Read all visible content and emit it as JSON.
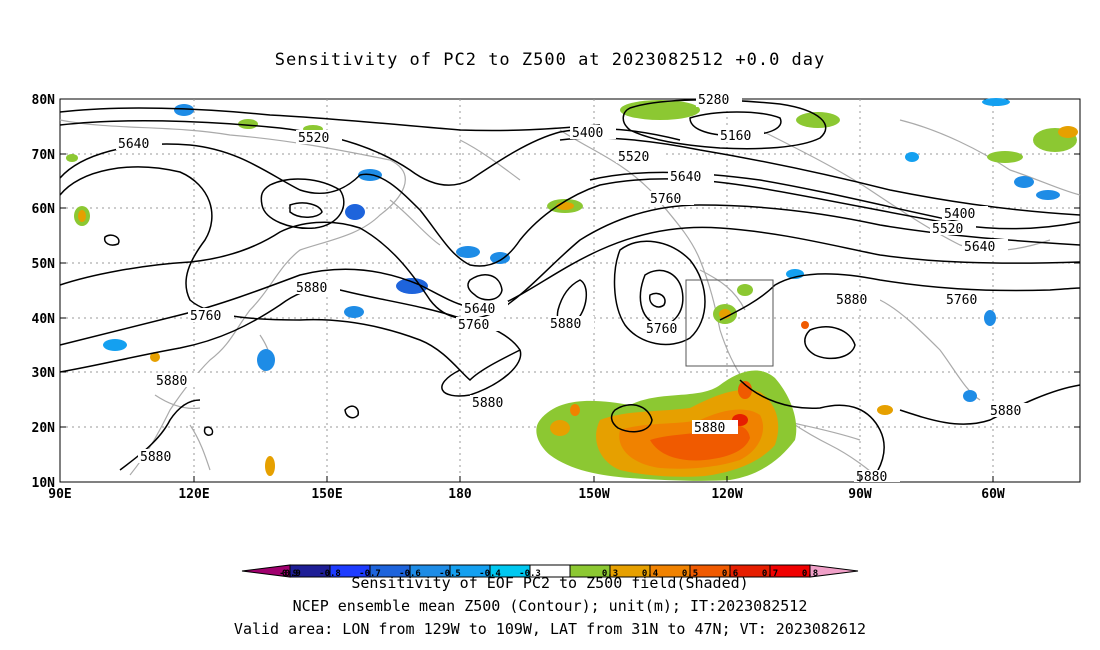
{
  "title": "Sensitivity of PC2 to Z500 at 2023082512 +0.0 day",
  "lat_labels": [
    "80N",
    "70N",
    "60N",
    "50N",
    "40N",
    "30N",
    "20N",
    "10N"
  ],
  "lon_labels": [
    "90E",
    "120E",
    "150E",
    "180",
    "150W",
    "120W",
    "90W",
    "60W"
  ],
  "contour_labels": {
    "5280": "5280",
    "5160": "5160",
    "5400": "5400",
    "5520": "5520",
    "5640": "5640",
    "5760": "5760",
    "5880": "5880"
  },
  "colorbar": {
    "ticks": [
      "-0.9",
      "-0.8",
      "-0.7",
      "-0.6",
      "-0.5",
      "-0.4",
      "-0.3",
      "0.3",
      "0.4",
      "0.5",
      "0.6",
      "0.7",
      "0.8",
      "0.9"
    ],
    "colors": [
      "#a0006e",
      "#1e1e96",
      "#1e3cff",
      "#1e64dc",
      "#1e8ce6",
      "#14a0f0",
      "#00c8f0",
      "#ffffff",
      "#8cc832",
      "#e6a000",
      "#f08200",
      "#f05a00",
      "#e61e00",
      "#f00000",
      "#f0a0c8"
    ],
    "label": "Sensitivity of EOF PC2 to Z500 field(Shaded)"
  },
  "footer": {
    "line1": "NCEP ensemble mean Z500 (Contour); unit(m); IT:2023082512",
    "line2": "Valid area: LON from 129W to 109W, LAT from 31N to 47N; VT: 2023082612"
  },
  "colors": {
    "contour": "#000000",
    "coast": "#aaaaaa",
    "grid": "#999999",
    "positive_shading": "#f07800",
    "negative_shading": "#1e8ce6"
  }
}
